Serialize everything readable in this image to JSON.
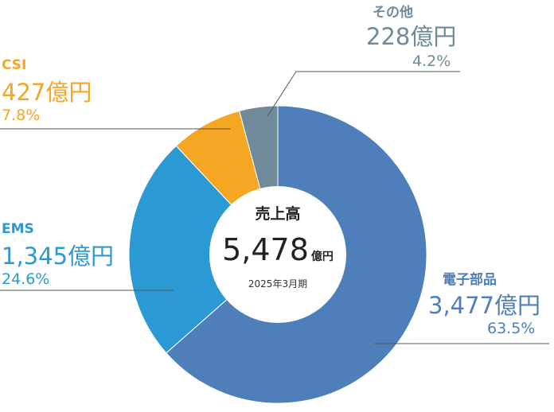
{
  "chart_data": {
    "type": "pie",
    "donut": true,
    "center": {
      "title": "売上高",
      "total": "5,478",
      "unit": "億円",
      "period": "2025年3月期"
    },
    "slices": [
      {
        "name": "電子部品",
        "value": 3477,
        "amount_label": "3,477億円",
        "percent_label": "63.5%",
        "color": "#4e7fba"
      },
      {
        "name": "EMS",
        "value": 1345,
        "amount_label": "1,345億円",
        "percent_label": "24.6%",
        "color": "#2b99d3"
      },
      {
        "name": "CSI",
        "value": 427,
        "amount_label": "427億円",
        "percent_label": "7.8%",
        "color": "#f5a623"
      },
      {
        "name": "その他",
        "value": 228,
        "amount_label": "228億円",
        "percent_label": "4.2%",
        "color": "#6f8a9a"
      }
    ]
  }
}
